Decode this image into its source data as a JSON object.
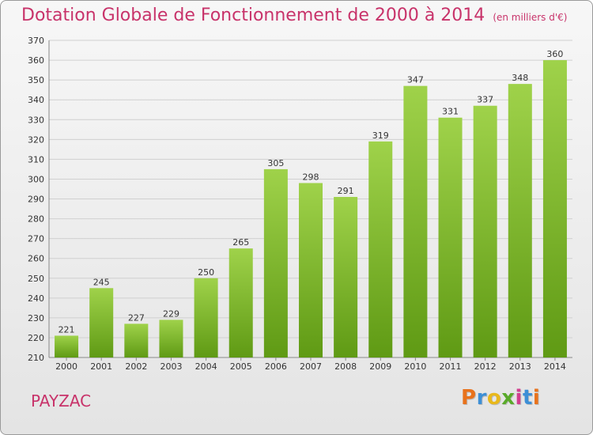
{
  "header": {
    "title": "Dotation Globale de Fonctionnement de 2000 à 2014",
    "subtitle": "(en milliers d'€)"
  },
  "commune": "PAYZAC",
  "logo": {
    "letters": [
      "P",
      "r",
      "o",
      "x",
      "i",
      "t",
      "i"
    ],
    "colors": [
      "#e8721c",
      "#3d8fd6",
      "#e8b81c",
      "#5aaa2a",
      "#d23e8f",
      "#3d8fd6",
      "#e8721c"
    ]
  },
  "colors": {
    "title": "#c8336a",
    "bar_top": "#9fd24a",
    "bar_bottom": "#5f9a14",
    "grid": "#d0d0d0"
  },
  "chart_data": {
    "type": "bar",
    "title": "Dotation Globale de Fonctionnement de 2000 à 2014",
    "subtitle": "(en milliers d'€)",
    "categories": [
      "2000",
      "2001",
      "2002",
      "2003",
      "2004",
      "2005",
      "2006",
      "2007",
      "2008",
      "2009",
      "2010",
      "2011",
      "2012",
      "2013",
      "2014"
    ],
    "values": [
      221,
      245,
      227,
      229,
      250,
      265,
      305,
      298,
      291,
      319,
      347,
      331,
      337,
      348,
      360
    ],
    "ylim": [
      210,
      370
    ],
    "yticks": [
      210,
      220,
      230,
      240,
      250,
      260,
      270,
      280,
      290,
      300,
      310,
      320,
      330,
      340,
      350,
      360,
      370
    ],
    "grid": true,
    "legend": "none"
  }
}
